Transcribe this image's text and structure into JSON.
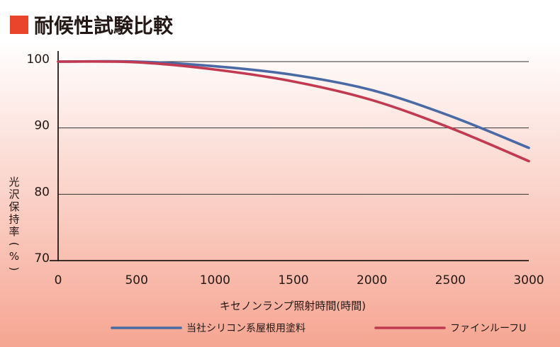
{
  "title": "耐候性試験比較",
  "colors": {
    "title_marker": "#e8452c",
    "bg_top": "#ffffff",
    "bg_bottom": "#f6a592",
    "grid": "#333333",
    "axis": "#231815"
  },
  "chart_data": {
    "type": "line",
    "title": "耐候性試験比較",
    "xlabel": "キセノンランプ照射時間(時間)",
    "ylabel": "光沢保持率(%)",
    "xlim": [
      0,
      3000
    ],
    "ylim": [
      70,
      100
    ],
    "x_ticks": [
      "0",
      "500",
      "1000",
      "1500",
      "2000",
      "2500",
      "3000"
    ],
    "y_ticks": [
      "70",
      "80",
      "90",
      "100"
    ],
    "grid": "horizontal",
    "legend_position": "bottom",
    "series": [
      {
        "name": "当社シリコン系屋根用塗料",
        "color": "#4a6aa5",
        "x": [
          0,
          500,
          1000,
          1500,
          2000,
          2500,
          3000
        ],
        "values": [
          100,
          100,
          99.3,
          98,
          95.7,
          91.8,
          87
        ]
      },
      {
        "name": "ファインルーフU",
        "color": "#c13a52",
        "x": [
          0,
          500,
          1000,
          1500,
          2000,
          2500,
          3000
        ],
        "values": [
          100,
          99.9,
          98.8,
          97,
          94.2,
          90,
          85
        ]
      }
    ]
  }
}
